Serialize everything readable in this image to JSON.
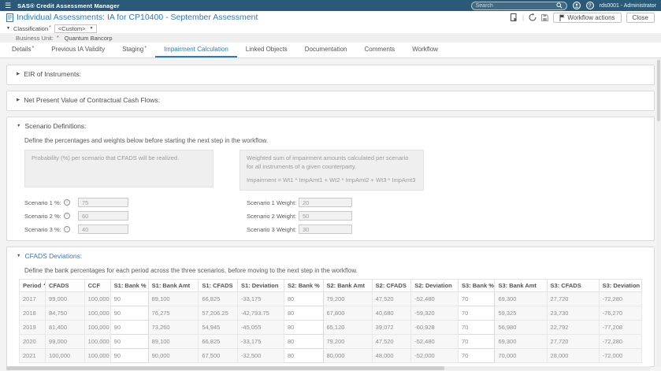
{
  "topbar": {
    "app_title": "SAS® Credit Assessment Manager",
    "search_placeholder": "Search",
    "username": "rds0001 - Administrator"
  },
  "header": {
    "title": "Individual Assessments: IA for CP10400 - September Assessment",
    "buttons": {
      "workflow_actions": "Workflow actions",
      "close": "Close"
    }
  },
  "classification": {
    "label": "Classification",
    "required": "*",
    "value": "<Custom>"
  },
  "business_unit": {
    "label": "Business Unit:",
    "required": "*",
    "value": "Quantum Bancorp"
  },
  "tabs": [
    {
      "label": "Details",
      "required": "*"
    },
    {
      "label": "Previous IA Validity"
    },
    {
      "label": "Staging",
      "required": "*"
    },
    {
      "label": "Impairment Calculation",
      "active": true
    },
    {
      "label": "Linked Objects"
    },
    {
      "label": "Documentation"
    },
    {
      "label": "Comments"
    },
    {
      "label": "Workflow"
    }
  ],
  "sections": {
    "eir": {
      "title": "EIR of Instruments:"
    },
    "npv": {
      "title": "Net Present Value of Contractual Cash Flows:"
    },
    "scenario_definitions": {
      "title": "Scenario Definitions:",
      "instruction": "Define the percentages and weights below before starting the next step in the workflow.",
      "probability_note": "Probability (%) per scenario that CFADS will be realized.",
      "weight_note": "Weighted sum of impairment amounts calculated per scenario for all instruments of a given counterparty.",
      "weight_formula": "Impairment = Wt1 * ImpAmt1 + Wt2 * ImpAmt2 + Wt3 * ImpAmt3",
      "percents": [
        {
          "label": "Scenario 1 %:",
          "value": "75"
        },
        {
          "label": "Scenario 2 %:",
          "value": "60"
        },
        {
          "label": "Scenario 3 %:",
          "value": "40"
        }
      ],
      "weights": [
        {
          "label": "Scenario 1 Weight:",
          "value": "20"
        },
        {
          "label": "Scenario 2 Weight:",
          "value": "50"
        },
        {
          "label": "Scenario 3 Weight:",
          "value": "30"
        }
      ]
    },
    "cfads_deviations": {
      "title": "CFADS Deviations:",
      "instruction": "Define the bank percentages for each period across the three scenarios, before moving to the next step in the workflow.",
      "table": {
        "columns": [
          "Period",
          "CFADS",
          "CCF",
          "S1: Bank %",
          "S1: Bank Amt",
          "S1: CFADS",
          "S1: Deviation",
          "S2: Bank %",
          "S2: Bank Amt",
          "S2: CFADS",
          "S2: Deviation",
          "S3: Bank %",
          "S3: Bank Amt",
          "S3: CFADS",
          "S3: Deviation"
        ],
        "editable_columns": [
          3,
          7,
          11
        ],
        "sorted_column": 0,
        "sort_direction": "asc",
        "rows": [
          [
            "2017",
            "99,000",
            "100,000",
            "90",
            "89,100",
            "66,825",
            "-33,175",
            "80",
            "79,200",
            "47,520",
            "-52,480",
            "70",
            "69,300",
            "27,720",
            "-72,280"
          ],
          [
            "2018",
            "84,750",
            "100,000",
            "90",
            "76,275",
            "57,206.25",
            "-42,793.75",
            "80",
            "67,800",
            "40,680",
            "-59,320",
            "70",
            "59,325",
            "23,730",
            "-76,270"
          ],
          [
            "2019",
            "81,400",
            "100,000",
            "90",
            "73,260",
            "54,945",
            "-45,055",
            "80",
            "65,120",
            "39,072",
            "-60,928",
            "70",
            "56,980",
            "22,792",
            "-77,208"
          ],
          [
            "2020",
            "99,000",
            "100,000",
            "90",
            "89,100",
            "66,825",
            "-33,175",
            "80",
            "79,200",
            "47,520",
            "-52,480",
            "70",
            "69,300",
            "27,720",
            "-72,280"
          ],
          [
            "2021",
            "100,000",
            "100,000",
            "90",
            "90,000",
            "67,500",
            "-32,500",
            "80",
            "80,000",
            "48,000",
            "-52,000",
            "70",
            "70,000",
            "28,000",
            "-72,000"
          ]
        ]
      }
    }
  },
  "colors": {
    "topbar": "#2a5a78",
    "accent_blue": "#3379b8",
    "required_red": "#c0392b"
  }
}
